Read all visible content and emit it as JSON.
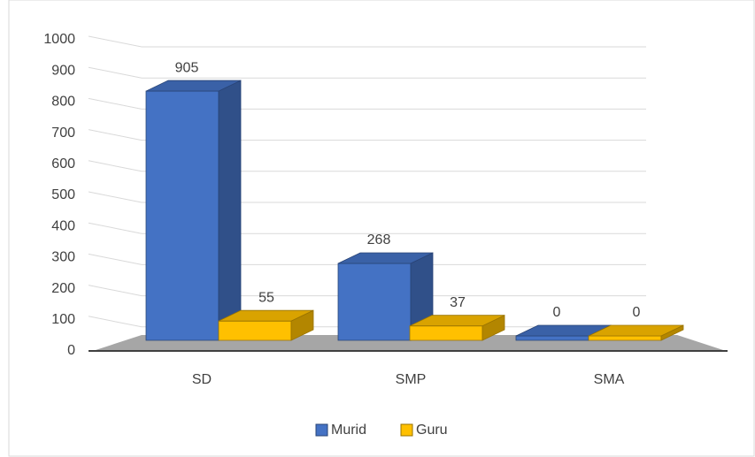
{
  "chart_data": {
    "type": "bar3d",
    "categories": [
      "SD",
      "SMP",
      "SMA"
    ],
    "series": [
      {
        "name": "Murid",
        "color": "#4472c4",
        "values": [
          905,
          268,
          0
        ]
      },
      {
        "name": "Guru",
        "color": "#ffc000",
        "values": [
          55,
          37,
          0
        ]
      }
    ],
    "ylim": [
      0,
      1000
    ],
    "yticks": [
      0,
      100,
      200,
      300,
      400,
      500,
      600,
      700,
      800,
      900,
      1000
    ],
    "grid": true,
    "legend": "bottom"
  }
}
